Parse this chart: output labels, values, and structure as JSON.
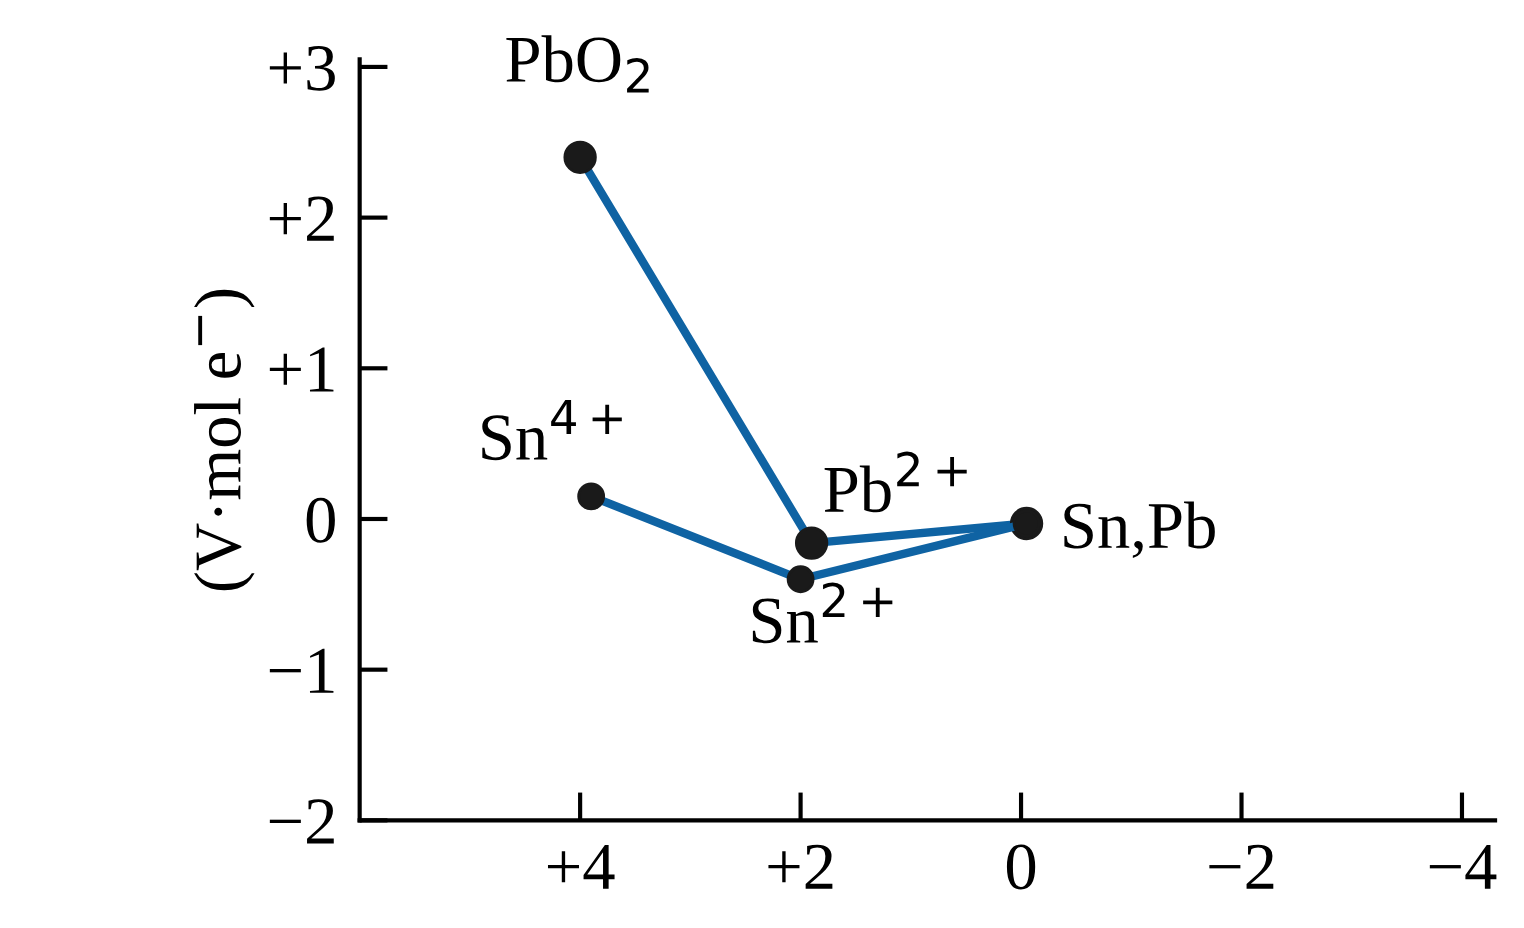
{
  "chart_data": {
    "type": "line",
    "ylabel": "(V·mol e$^{−}$)",
    "series": [
      {
        "color": "#0f63a3",
        "x": [
          4,
          1.9,
          -0.05
        ],
        "values": [
          2.4,
          -0.16,
          -0.03
        ]
      },
      {
        "color": "#0f63a3",
        "x": [
          3.9,
          2,
          -0.05
        ],
        "values": [
          0.15,
          -0.4,
          -0.03
        ]
      }
    ],
    "marker": "circle",
    "line_style": "solid",
    "grid": false,
    "legend": false,
    "xlim": [
      6,
      -4.3
    ],
    "ylim": [
      -2,
      3.05
    ],
    "xticks": [
      {
        "value": 4,
        "label": "+4"
      },
      {
        "value": 2,
        "label": "+2"
      },
      0,
      {
        "value": -2,
        "label": "−2"
      },
      {
        "value": -4,
        "label": "−4"
      }
    ],
    "yticks": [
      {
        "value": 3,
        "label": "+3"
      },
      {
        "value": 2,
        "label": "+2"
      },
      {
        "value": 1,
        "label": "+1"
      },
      0,
      {
        "value": -1,
        "label": "−1"
      },
      {
        "value": -2,
        "label": "−2"
      }
    ],
    "annotations": [
      {
        "text": "PbO$_{2}$",
        "x": 4,
        "y": 2.4
      },
      {
        "text": "Pb$^{2+}$",
        "x": 1.9,
        "y": -0.16
      },
      {
        "text": "Sn,Pb",
        "x": -0.05,
        "y": -0.03
      },
      {
        "text": "Sn$^{4+}$",
        "x": 3.9,
        "y": 0.15
      },
      {
        "text": "Sn$^{2+}$",
        "x": 2,
        "y": -0.4
      }
    ]
  }
}
